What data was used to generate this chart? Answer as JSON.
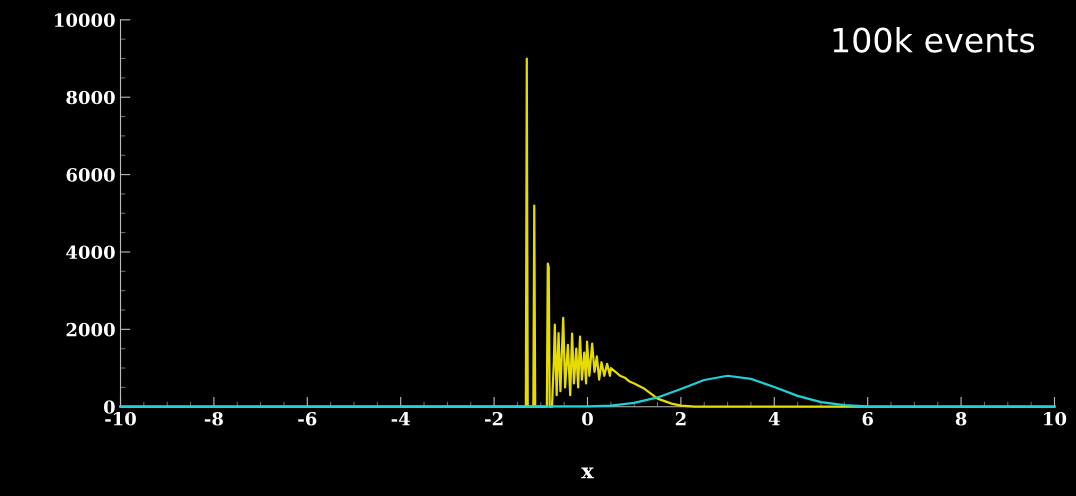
{
  "chart_data": {
    "type": "line",
    "xlabel": "x",
    "annotations": [
      "100k events"
    ],
    "xlim": [
      -10,
      10
    ],
    "xticks": [
      -10,
      -8,
      -6,
      -4,
      -2,
      0,
      2,
      4,
      6,
      8,
      10
    ],
    "ylim": [
      0,
      10000
    ],
    "yticks": [
      0,
      2000,
      4000,
      6000,
      8000,
      10000
    ],
    "grid": false,
    "marker": "none",
    "line_style": "solid",
    "series": [
      {
        "color": "#e6dc00",
        "x": [
          -10,
          -1.32,
          -1.3,
          -1.28,
          -1.16,
          -1.14,
          -1.12,
          -0.87,
          -0.85,
          -0.83,
          -0.81,
          -0.76,
          -0.72,
          -0.7,
          -0.66,
          -0.62,
          -0.58,
          -0.52,
          -0.48,
          -0.42,
          -0.37,
          -0.33,
          -0.29,
          -0.24,
          -0.2,
          -0.16,
          -0.12,
          -0.07,
          -0.03,
          -0.01,
          0.04,
          0.1,
          0.15,
          0.2,
          0.25,
          0.3,
          0.36,
          0.42,
          0.48,
          0.5,
          0.6,
          0.7,
          0.8,
          0.9,
          1.0,
          1.2,
          1.5,
          1.8,
          2.0,
          2.3,
          10
        ],
        "values": [
          0,
          0,
          9000,
          0,
          0,
          5200,
          0,
          0,
          3700,
          3600,
          0,
          0,
          1200,
          2120,
          300,
          1900,
          400,
          2300,
          500,
          1600,
          300,
          1890,
          600,
          1500,
          500,
          1810,
          700,
          1400,
          600,
          1680,
          800,
          1630,
          900,
          1300,
          700,
          1150,
          800,
          1110,
          800,
          1000,
          900,
          800,
          750,
          650,
          600,
          480,
          210,
          80,
          30,
          0,
          0
        ]
      },
      {
        "color": "#20d0d8",
        "x": [
          -10,
          0,
          0.5,
          1,
          1.5,
          2,
          2.5,
          3,
          3.5,
          4,
          4.5,
          5,
          5.5,
          6,
          10
        ],
        "values": [
          0,
          10,
          30,
          100,
          240,
          460,
          690,
          800,
          720,
          510,
          280,
          120,
          40,
          10,
          0
        ]
      }
    ]
  }
}
